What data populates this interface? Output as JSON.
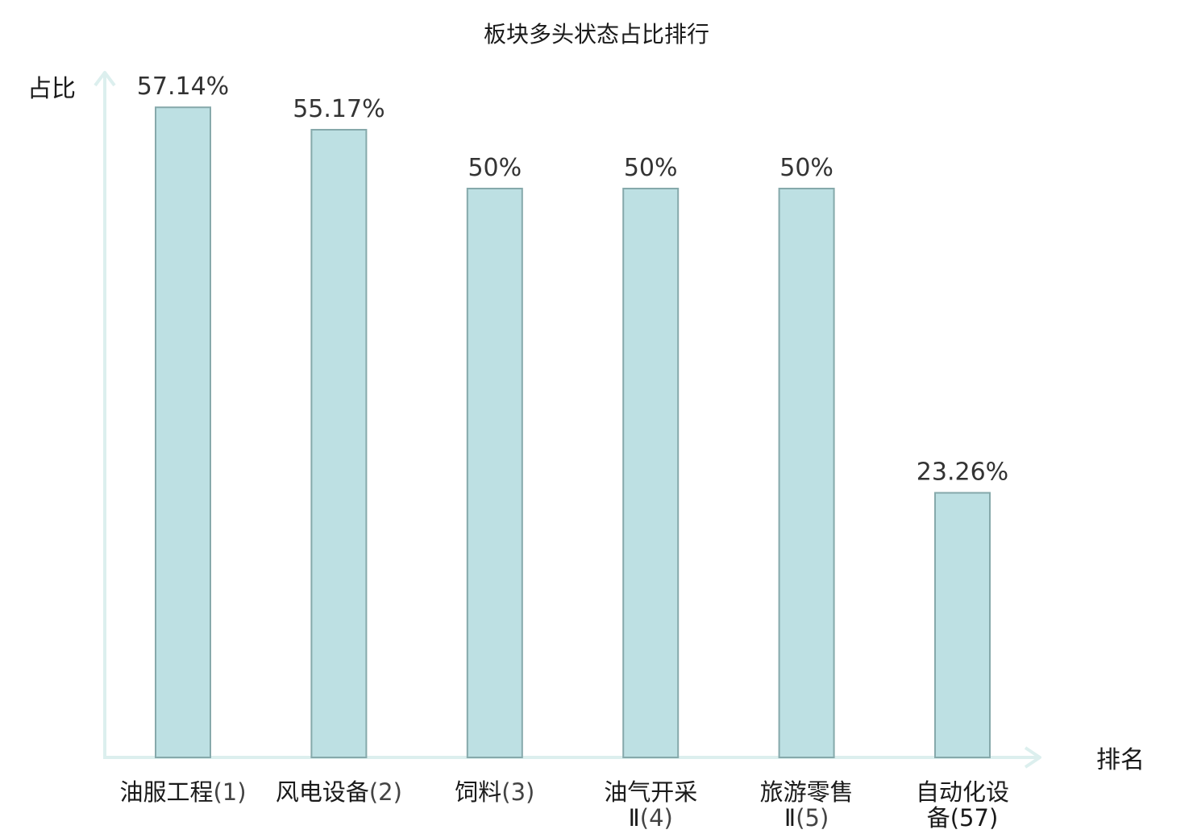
{
  "chart_data": {
    "type": "bar",
    "title": "板块多头状态占比排行",
    "ylabel": "占比",
    "xlabel": "排名",
    "ylim": [
      0,
      60
    ],
    "grid": false,
    "legend": "none",
    "categories": [
      {
        "line1": "油服工程",
        "rank": "(1)",
        "line2": ""
      },
      {
        "line1": "风电设备",
        "rank": "(2)",
        "line2": ""
      },
      {
        "line1": "饲料",
        "rank": "(3)",
        "line2": ""
      },
      {
        "line1": "油气开采",
        "rank": "(4)",
        "line2": "Ⅱ"
      },
      {
        "line1": "旅游零售",
        "rank": "(5)",
        "line2": "Ⅱ"
      },
      {
        "line1": "自动化设",
        "rank": "(57)",
        "line2": "备"
      }
    ],
    "values": [
      57.14,
      55.17,
      50,
      50,
      50,
      23.26
    ],
    "value_labels": [
      "57.14%",
      "55.17%",
      "50%",
      "50%",
      "50%",
      "23.26%"
    ],
    "highlight_index": 5,
    "colors": {
      "bar_fill": "#bde0e3",
      "bar_stroke": "#86a9ab",
      "axis": "#dcefee",
      "highlight_text": "#e11010",
      "text": "#1a1a1a"
    }
  }
}
